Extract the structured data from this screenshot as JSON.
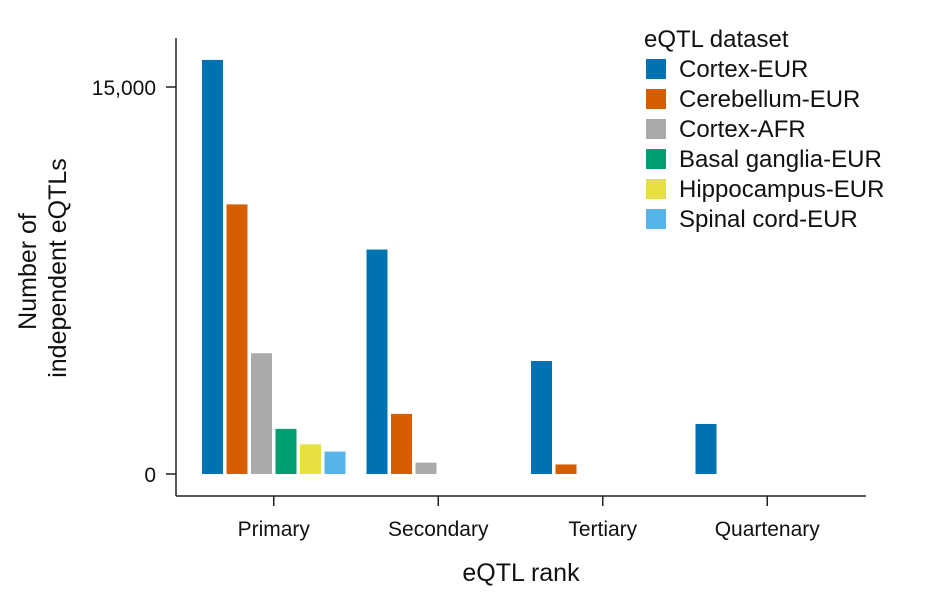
{
  "chart_data": {
    "type": "bar",
    "title": "",
    "xlabel": "eQTL rank",
    "ylabel_lines": [
      "Number of",
      "independent eQTLs"
    ],
    "categories": [
      "Primary",
      "Secondary",
      "Tertiary",
      "Quartenary"
    ],
    "ylim": [
      0,
      16500
    ],
    "yticks": [
      0,
      15000
    ],
    "ytick_labels": [
      "0",
      "15,000"
    ],
    "legend_title": "eQTL dataset",
    "legend_position": "top-right",
    "series": [
      {
        "name": "Cortex-EUR",
        "color": "#0072b2",
        "values": [
          16050,
          8700,
          4380,
          1940
        ]
      },
      {
        "name": "Cerebellum-EUR",
        "color": "#d55e00",
        "values": [
          10450,
          2330,
          370,
          null
        ]
      },
      {
        "name": "Cortex-AFR",
        "color": "#aaaaaa",
        "values": [
          4680,
          440,
          null,
          null
        ]
      },
      {
        "name": "Basal ganglia-EUR",
        "color": "#009e73",
        "values": [
          1750,
          null,
          null,
          null
        ]
      },
      {
        "name": "Hippocampus-EUR",
        "color": "#e5e040",
        "values": [
          1150,
          null,
          null,
          null
        ]
      },
      {
        "name": "Spinal cord-EUR",
        "color": "#56b4e9",
        "values": [
          870,
          null,
          null,
          null
        ]
      }
    ]
  }
}
